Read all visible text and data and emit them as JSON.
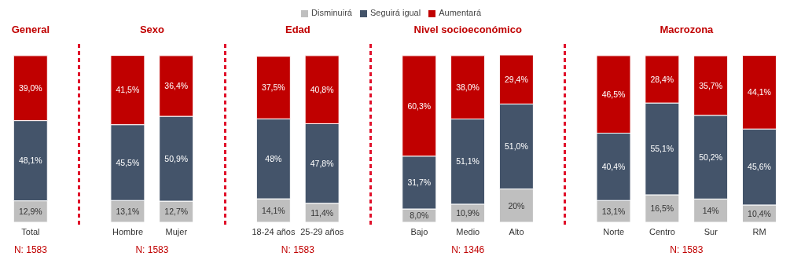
{
  "chart_data": {
    "type": "bar",
    "stacked": true,
    "legend": "top",
    "categories": [
      "Total",
      null,
      "Hombre",
      "Mujer",
      null,
      "18-24 años",
      "25-29 años",
      null,
      "Bajo",
      "Medio",
      "Alto",
      null,
      "Norte",
      "Centro",
      "Sur",
      "RM"
    ],
    "series": [
      {
        "name": "Disminuirá",
        "color": "#bfbfbf",
        "values": [
          12.9,
          null,
          13.1,
          12.7,
          null,
          14.1,
          11.4,
          null,
          8.0,
          10.9,
          20,
          null,
          13.1,
          16.5,
          14,
          10.4
        ],
        "value_labels": [
          "12,9%",
          null,
          "13,1%",
          "12,7%",
          null,
          "14,1%",
          "11,4%",
          null,
          "8,0%",
          "10,9%",
          "20%",
          null,
          "13,1%",
          "16,5%",
          "14%",
          "10,4%"
        ]
      },
      {
        "name": "Seguirá igual",
        "color": "#44546a",
        "values": [
          48.1,
          null,
          45.5,
          50.9,
          null,
          48,
          47.8,
          null,
          31.7,
          51.1,
          51.0,
          null,
          40.4,
          55.1,
          50.2,
          45.6
        ],
        "value_labels": [
          "48,1%",
          null,
          "45,5%",
          "50,9%",
          null,
          "48%",
          "47,8%",
          null,
          "31,7%",
          "51,1%",
          "51,0%",
          null,
          "40,4%",
          "55,1%",
          "50,2%",
          "45,6%"
        ]
      },
      {
        "name": "Aumentará",
        "color": "#c00000",
        "values": [
          39.0,
          null,
          41.5,
          36.4,
          null,
          37.5,
          40.8,
          null,
          60.3,
          38.0,
          29.4,
          null,
          46.5,
          28.4,
          35.7,
          44.1
        ],
        "value_labels": [
          "39,0%",
          null,
          "41,5%",
          "36,4%",
          null,
          "37,5%",
          "40,8%",
          null,
          "60,3%",
          "38,0%",
          "29,4%",
          null,
          "46,5%",
          "28,4%",
          "35,7%",
          "44,1%"
        ]
      }
    ],
    "annotations": [
      "General",
      "N: 1583",
      "Sexo",
      "N: 1583",
      "Edad",
      "N: 1583",
      "Nivel socioeconómico",
      "N: 1346",
      "Macrozona",
      "N: 1583"
    ]
  }
}
